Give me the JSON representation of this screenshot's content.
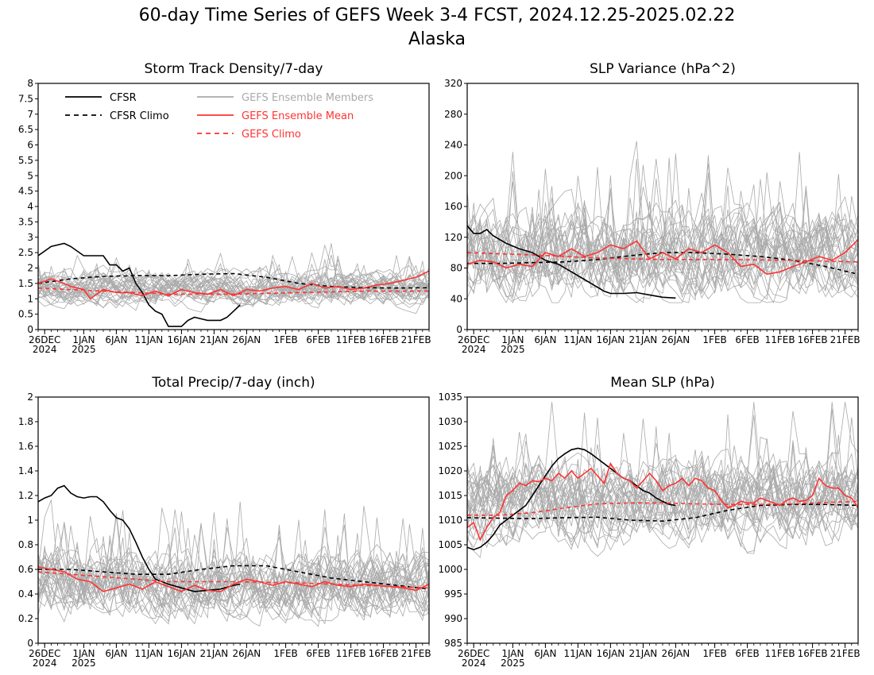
{
  "page": {
    "title_line1": "60-day Time Series of GEFS Week 3-4 FCST, 2024.12.25-2025.02.22",
    "title_line2": "Alaska"
  },
  "colors": {
    "cfsr": "#000000",
    "ensemble_members": "#aaaaaa",
    "ensemble_mean": "#ff3333",
    "gefs_climo": "#ff3333"
  },
  "legend": {
    "cfsr": "CFSR",
    "cfsr_climo": "CFSR Climo",
    "members": "GEFS Ensemble Members",
    "mean": "GEFS Ensemble Mean",
    "gefs_climo": "GEFS Climo"
  },
  "x_ticks": [
    {
      "day": 1,
      "l1": "26DEC",
      "l2": "2024"
    },
    {
      "day": 7,
      "l1": "1JAN",
      "l2": "2025"
    },
    {
      "day": 12,
      "l1": "6JAN",
      "l2": ""
    },
    {
      "day": 17,
      "l1": "11JAN",
      "l2": ""
    },
    {
      "day": 22,
      "l1": "16JAN",
      "l2": ""
    },
    {
      "day": 27,
      "l1": "21JAN",
      "l2": ""
    },
    {
      "day": 32,
      "l1": "26JAN",
      "l2": ""
    },
    {
      "day": 38,
      "l1": "1FEB",
      "l2": ""
    },
    {
      "day": 43,
      "l1": "6FEB",
      "l2": ""
    },
    {
      "day": 48,
      "l1": "11FEB",
      "l2": ""
    },
    {
      "day": 53,
      "l1": "16FEB",
      "l2": ""
    },
    {
      "day": 58,
      "l1": "21FEB",
      "l2": ""
    }
  ],
  "chart_data": [
    {
      "type": "line",
      "title": "Storm Track Density/7-day",
      "x_range": [
        0,
        60
      ],
      "ylim": [
        0,
        8
      ],
      "yticks": [
        0,
        0.5,
        1,
        1.5,
        2,
        2.5,
        3,
        3.5,
        4,
        4.5,
        5,
        5.5,
        6,
        6.5,
        7,
        7.5,
        8
      ],
      "ytick_labels": [
        "0",
        "0.5",
        "1",
        "1.5",
        "2",
        "2.5",
        "3",
        "3.5",
        "4",
        "4.5",
        "5",
        "5.5",
        "6",
        "6.5",
        "7",
        "7.5",
        "8"
      ],
      "legend": true,
      "series": [
        {
          "name": "CFSR",
          "style": "solid",
          "color": "#000000",
          "x": [
            0,
            2,
            4,
            5,
            7,
            9,
            10,
            11,
            12,
            13,
            14,
            15,
            16,
            17,
            18,
            19,
            20,
            21,
            22,
            23,
            24,
            26,
            28,
            29,
            30,
            31
          ],
          "y": [
            2.4,
            2.7,
            2.8,
            2.7,
            2.4,
            2.4,
            2.4,
            2.1,
            2.1,
            1.9,
            2.0,
            1.5,
            1.2,
            0.8,
            0.6,
            0.5,
            0.1,
            0.1,
            0.1,
            0.3,
            0.4,
            0.3,
            0.3,
            0.4,
            0.6,
            0.8
          ]
        },
        {
          "name": "CFSR Climo",
          "style": "dash",
          "color": "#000000",
          "x": [
            0,
            5,
            10,
            15,
            20,
            25,
            30,
            35,
            40,
            45,
            50,
            55,
            60
          ],
          "y": [
            1.5,
            1.65,
            1.73,
            1.75,
            1.75,
            1.8,
            1.82,
            1.7,
            1.5,
            1.4,
            1.36,
            1.35,
            1.36
          ]
        },
        {
          "name": "GEFS Ensemble Mean",
          "style": "solid",
          "color": "#ff3333",
          "x": [
            0,
            2,
            4,
            5,
            7,
            8,
            10,
            12,
            14,
            16,
            18,
            20,
            22,
            24,
            26,
            28,
            30,
            32,
            34,
            36,
            38,
            40,
            42,
            44,
            46,
            48,
            50,
            52,
            54,
            56,
            58,
            60
          ],
          "y": [
            1.5,
            1.65,
            1.5,
            1.4,
            1.3,
            1.0,
            1.3,
            1.2,
            1.2,
            1.1,
            1.25,
            1.1,
            1.3,
            1.2,
            1.15,
            1.3,
            1.1,
            1.3,
            1.25,
            1.35,
            1.4,
            1.3,
            1.5,
            1.35,
            1.4,
            1.3,
            1.35,
            1.45,
            1.5,
            1.6,
            1.7,
            1.9
          ]
        },
        {
          "name": "GEFS Climo",
          "style": "dash",
          "color": "#ff3333",
          "x": [
            0,
            10,
            20,
            30,
            40,
            50,
            60
          ],
          "y": [
            1.35,
            1.25,
            1.15,
            1.15,
            1.2,
            1.25,
            1.25
          ]
        }
      ],
      "ensemble_members": {
        "name": "GEFS Ensemble Members",
        "count": 30,
        "center": [
          1.2,
          1.5
        ],
        "spread": [
          0.3,
          2.8
        ]
      }
    },
    {
      "type": "line",
      "title": "SLP Variance (hPa^2)",
      "x_range": [
        0,
        60
      ],
      "ylim": [
        0,
        320
      ],
      "yticks": [
        0,
        40,
        80,
        120,
        160,
        200,
        240,
        280,
        320
      ],
      "ytick_labels": [
        "0",
        "40",
        "80",
        "120",
        "160",
        "200",
        "240",
        "280",
        "320"
      ],
      "legend": false,
      "series": [
        {
          "name": "CFSR",
          "style": "solid",
          "color": "#000000",
          "x": [
            0,
            1,
            2,
            3,
            4,
            6,
            8,
            10,
            12,
            14,
            16,
            18,
            20,
            21,
            22,
            24,
            26,
            28,
            30,
            32
          ],
          "y": [
            135,
            125,
            125,
            130,
            122,
            112,
            105,
            100,
            90,
            85,
            75,
            65,
            55,
            50,
            47,
            47,
            48,
            45,
            42,
            41
          ]
        },
        {
          "name": "CFSR Climo",
          "style": "dash",
          "color": "#000000",
          "x": [
            0,
            5,
            10,
            15,
            20,
            25,
            30,
            35,
            40,
            45,
            50,
            55,
            60
          ],
          "y": [
            86,
            86,
            87,
            88,
            91,
            96,
            100,
            100,
            98,
            95,
            90,
            82,
            72
          ]
        },
        {
          "name": "GEFS Ensemble Mean",
          "style": "solid",
          "color": "#ff3333",
          "x": [
            0,
            2,
            4,
            6,
            8,
            10,
            12,
            14,
            16,
            18,
            20,
            22,
            24,
            26,
            28,
            30,
            32,
            34,
            36,
            38,
            40,
            42,
            44,
            46,
            48,
            50,
            52,
            54,
            56,
            58,
            60
          ],
          "y": [
            85,
            90,
            88,
            80,
            85,
            82,
            100,
            95,
            105,
            95,
            100,
            110,
            105,
            115,
            92,
            100,
            92,
            105,
            100,
            110,
            100,
            82,
            85,
            72,
            75,
            82,
            88,
            95,
            90,
            100,
            117
          ]
        },
        {
          "name": "GEFS Climo",
          "style": "dash",
          "color": "#ff3333",
          "x": [
            0,
            10,
            20,
            30,
            40,
            50,
            60
          ],
          "y": [
            100,
            97,
            93,
            91,
            91,
            90,
            88
          ]
        }
      ],
      "ensemble_members": {
        "name": "GEFS Ensemble Members",
        "count": 30,
        "center": [
          85,
          110
        ],
        "spread": [
          35,
          300
        ]
      }
    },
    {
      "type": "line",
      "title": "Total Precip/7-day (inch)",
      "x_range": [
        0,
        60
      ],
      "ylim": [
        0,
        2
      ],
      "yticks": [
        0,
        0.2,
        0.4,
        0.6,
        0.8,
        1,
        1.2,
        1.4,
        1.6,
        1.8,
        2
      ],
      "ytick_labels": [
        "0",
        "0.2",
        "0.4",
        "0.6",
        "0.8",
        "1",
        "1.2",
        "1.4",
        "1.6",
        "1.8",
        "2"
      ],
      "legend": false,
      "series": [
        {
          "name": "CFSR",
          "style": "solid",
          "color": "#000000",
          "x": [
            0,
            1,
            2,
            3,
            4,
            5,
            6,
            7,
            8,
            9,
            10,
            11,
            12,
            13,
            14,
            15,
            16,
            17,
            18,
            19,
            20,
            22,
            24,
            26,
            28,
            30,
            31
          ],
          "y": [
            1.15,
            1.18,
            1.2,
            1.26,
            1.28,
            1.22,
            1.19,
            1.18,
            1.19,
            1.19,
            1.15,
            1.08,
            1.02,
            1.0,
            0.93,
            0.82,
            0.7,
            0.6,
            0.52,
            0.5,
            0.48,
            0.45,
            0.42,
            0.43,
            0.44,
            0.47,
            0.48
          ]
        },
        {
          "name": "CFSR Climo",
          "style": "dash",
          "color": "#000000",
          "x": [
            0,
            5,
            10,
            15,
            20,
            25,
            30,
            35,
            40,
            45,
            50,
            55,
            60
          ],
          "y": [
            0.6,
            0.6,
            0.58,
            0.56,
            0.56,
            0.6,
            0.63,
            0.63,
            0.58,
            0.53,
            0.5,
            0.47,
            0.44
          ]
        },
        {
          "name": "GEFS Ensemble Mean",
          "style": "solid",
          "color": "#ff3333",
          "x": [
            0,
            2,
            4,
            6,
            8,
            10,
            12,
            14,
            16,
            18,
            20,
            22,
            24,
            26,
            28,
            30,
            32,
            34,
            36,
            38,
            40,
            42,
            44,
            46,
            48,
            50,
            52,
            54,
            56,
            58,
            60
          ],
          "y": [
            0.62,
            0.6,
            0.58,
            0.52,
            0.5,
            0.42,
            0.45,
            0.48,
            0.44,
            0.5,
            0.46,
            0.42,
            0.47,
            0.43,
            0.42,
            0.48,
            0.52,
            0.5,
            0.47,
            0.5,
            0.48,
            0.46,
            0.5,
            0.47,
            0.46,
            0.48,
            0.47,
            0.46,
            0.45,
            0.43,
            0.48
          ]
        },
        {
          "name": "GEFS Climo",
          "style": "dash",
          "color": "#ff3333",
          "x": [
            0,
            10,
            20,
            30,
            40,
            50,
            60
          ],
          "y": [
            0.58,
            0.54,
            0.5,
            0.5,
            0.49,
            0.47,
            0.45
          ]
        }
      ],
      "ensemble_members": {
        "name": "GEFS Ensemble Members",
        "count": 30,
        "center": [
          0.45,
          0.5
        ],
        "spread": [
          0.1,
          1.4
        ]
      }
    },
    {
      "type": "line",
      "title": "Mean SLP (hPa)",
      "x_range": [
        0,
        60
      ],
      "ylim": [
        985,
        1035
      ],
      "yticks": [
        985,
        990,
        995,
        1000,
        1005,
        1010,
        1015,
        1020,
        1025,
        1030,
        1035
      ],
      "ytick_labels": [
        "985",
        "990",
        "995",
        "1000",
        "1005",
        "1010",
        "1015",
        "1020",
        "1025",
        "1030",
        "1035"
      ],
      "legend": false,
      "series": [
        {
          "name": "CFSR",
          "style": "solid",
          "color": "#000000",
          "x": [
            0,
            1,
            2,
            3,
            4,
            5,
            6,
            7,
            8,
            9,
            10,
            11,
            12,
            13,
            14,
            15,
            16,
            17,
            18,
            19,
            20,
            21,
            22,
            23,
            24,
            25,
            26,
            27,
            28,
            29,
            30,
            31,
            32
          ],
          "y": [
            1004.5,
            1004,
            1004.5,
            1005.5,
            1007,
            1009,
            1010,
            1011,
            1012,
            1013,
            1015,
            1017,
            1019,
            1021,
            1022.5,
            1023.5,
            1024.3,
            1024.6,
            1024.3,
            1023.5,
            1022.5,
            1021.5,
            1020.5,
            1019.5,
            1018.5,
            1018,
            1017,
            1016,
            1015.5,
            1014.5,
            1013.8,
            1013.2,
            1013
          ]
        },
        {
          "name": "CFSR Climo",
          "style": "dash",
          "color": "#000000",
          "x": [
            0,
            5,
            10,
            15,
            20,
            25,
            30,
            35,
            40,
            45,
            50,
            55,
            60
          ],
          "y": [
            1010.5,
            1010.4,
            1010.3,
            1010.5,
            1010.6,
            1010,
            1009.8,
            1010.5,
            1012,
            1013,
            1013.2,
            1013.2,
            1013
          ]
        },
        {
          "name": "GEFS Ensemble Mean",
          "style": "solid",
          "color": "#ff3333",
          "x": [
            0,
            1,
            2,
            3,
            4,
            5,
            6,
            7,
            8,
            9,
            10,
            11,
            12,
            13,
            14,
            15,
            16,
            17,
            18,
            19,
            20,
            21,
            22,
            23,
            24,
            25,
            26,
            27,
            28,
            29,
            30,
            31,
            32,
            33,
            34,
            35,
            36,
            37,
            38,
            39,
            40,
            41,
            42,
            43,
            44,
            45,
            46,
            47,
            48,
            49,
            50,
            51,
            52,
            53,
            54,
            55,
            56,
            57,
            58,
            59,
            60
          ],
          "y": [
            1008.5,
            1009.5,
            1006,
            1008.5,
            1010.5,
            1011.5,
            1015,
            1016,
            1017.5,
            1017,
            1018,
            1017.8,
            1018.5,
            1018,
            1019.5,
            1018.5,
            1020,
            1018.5,
            1019.5,
            1020.5,
            1019,
            1017.5,
            1021.5,
            1019.5,
            1018.5,
            1018,
            1016.5,
            1018,
            1019.5,
            1018,
            1016,
            1017,
            1017.5,
            1018.5,
            1017,
            1018.5,
            1018,
            1016.5,
            1016,
            1014,
            1012.5,
            1013,
            1013.8,
            1013.5,
            1013.5,
            1014.5,
            1014,
            1013.5,
            1013,
            1014,
            1014.5,
            1013.8,
            1014,
            1015,
            1018.5,
            1017,
            1016.5,
            1016.5,
            1015,
            1014.5,
            1012.5
          ]
        },
        {
          "name": "GEFS Climo",
          "style": "dash",
          "color": "#ff3333",
          "x": [
            0,
            5,
            10,
            15,
            20,
            25,
            30,
            35,
            40,
            45,
            50,
            55,
            60
          ],
          "y": [
            1011,
            1011,
            1011.5,
            1012.5,
            1013.3,
            1013.5,
            1013.5,
            1013.3,
            1013.2,
            1013.2,
            1013.3,
            1013.6,
            1013.8
          ]
        }
      ],
      "ensemble_members": {
        "name": "GEFS Ensemble Members",
        "count": 30,
        "center": [
          1012,
          1016
        ],
        "spread": [
          995,
          1034
        ]
      }
    }
  ]
}
